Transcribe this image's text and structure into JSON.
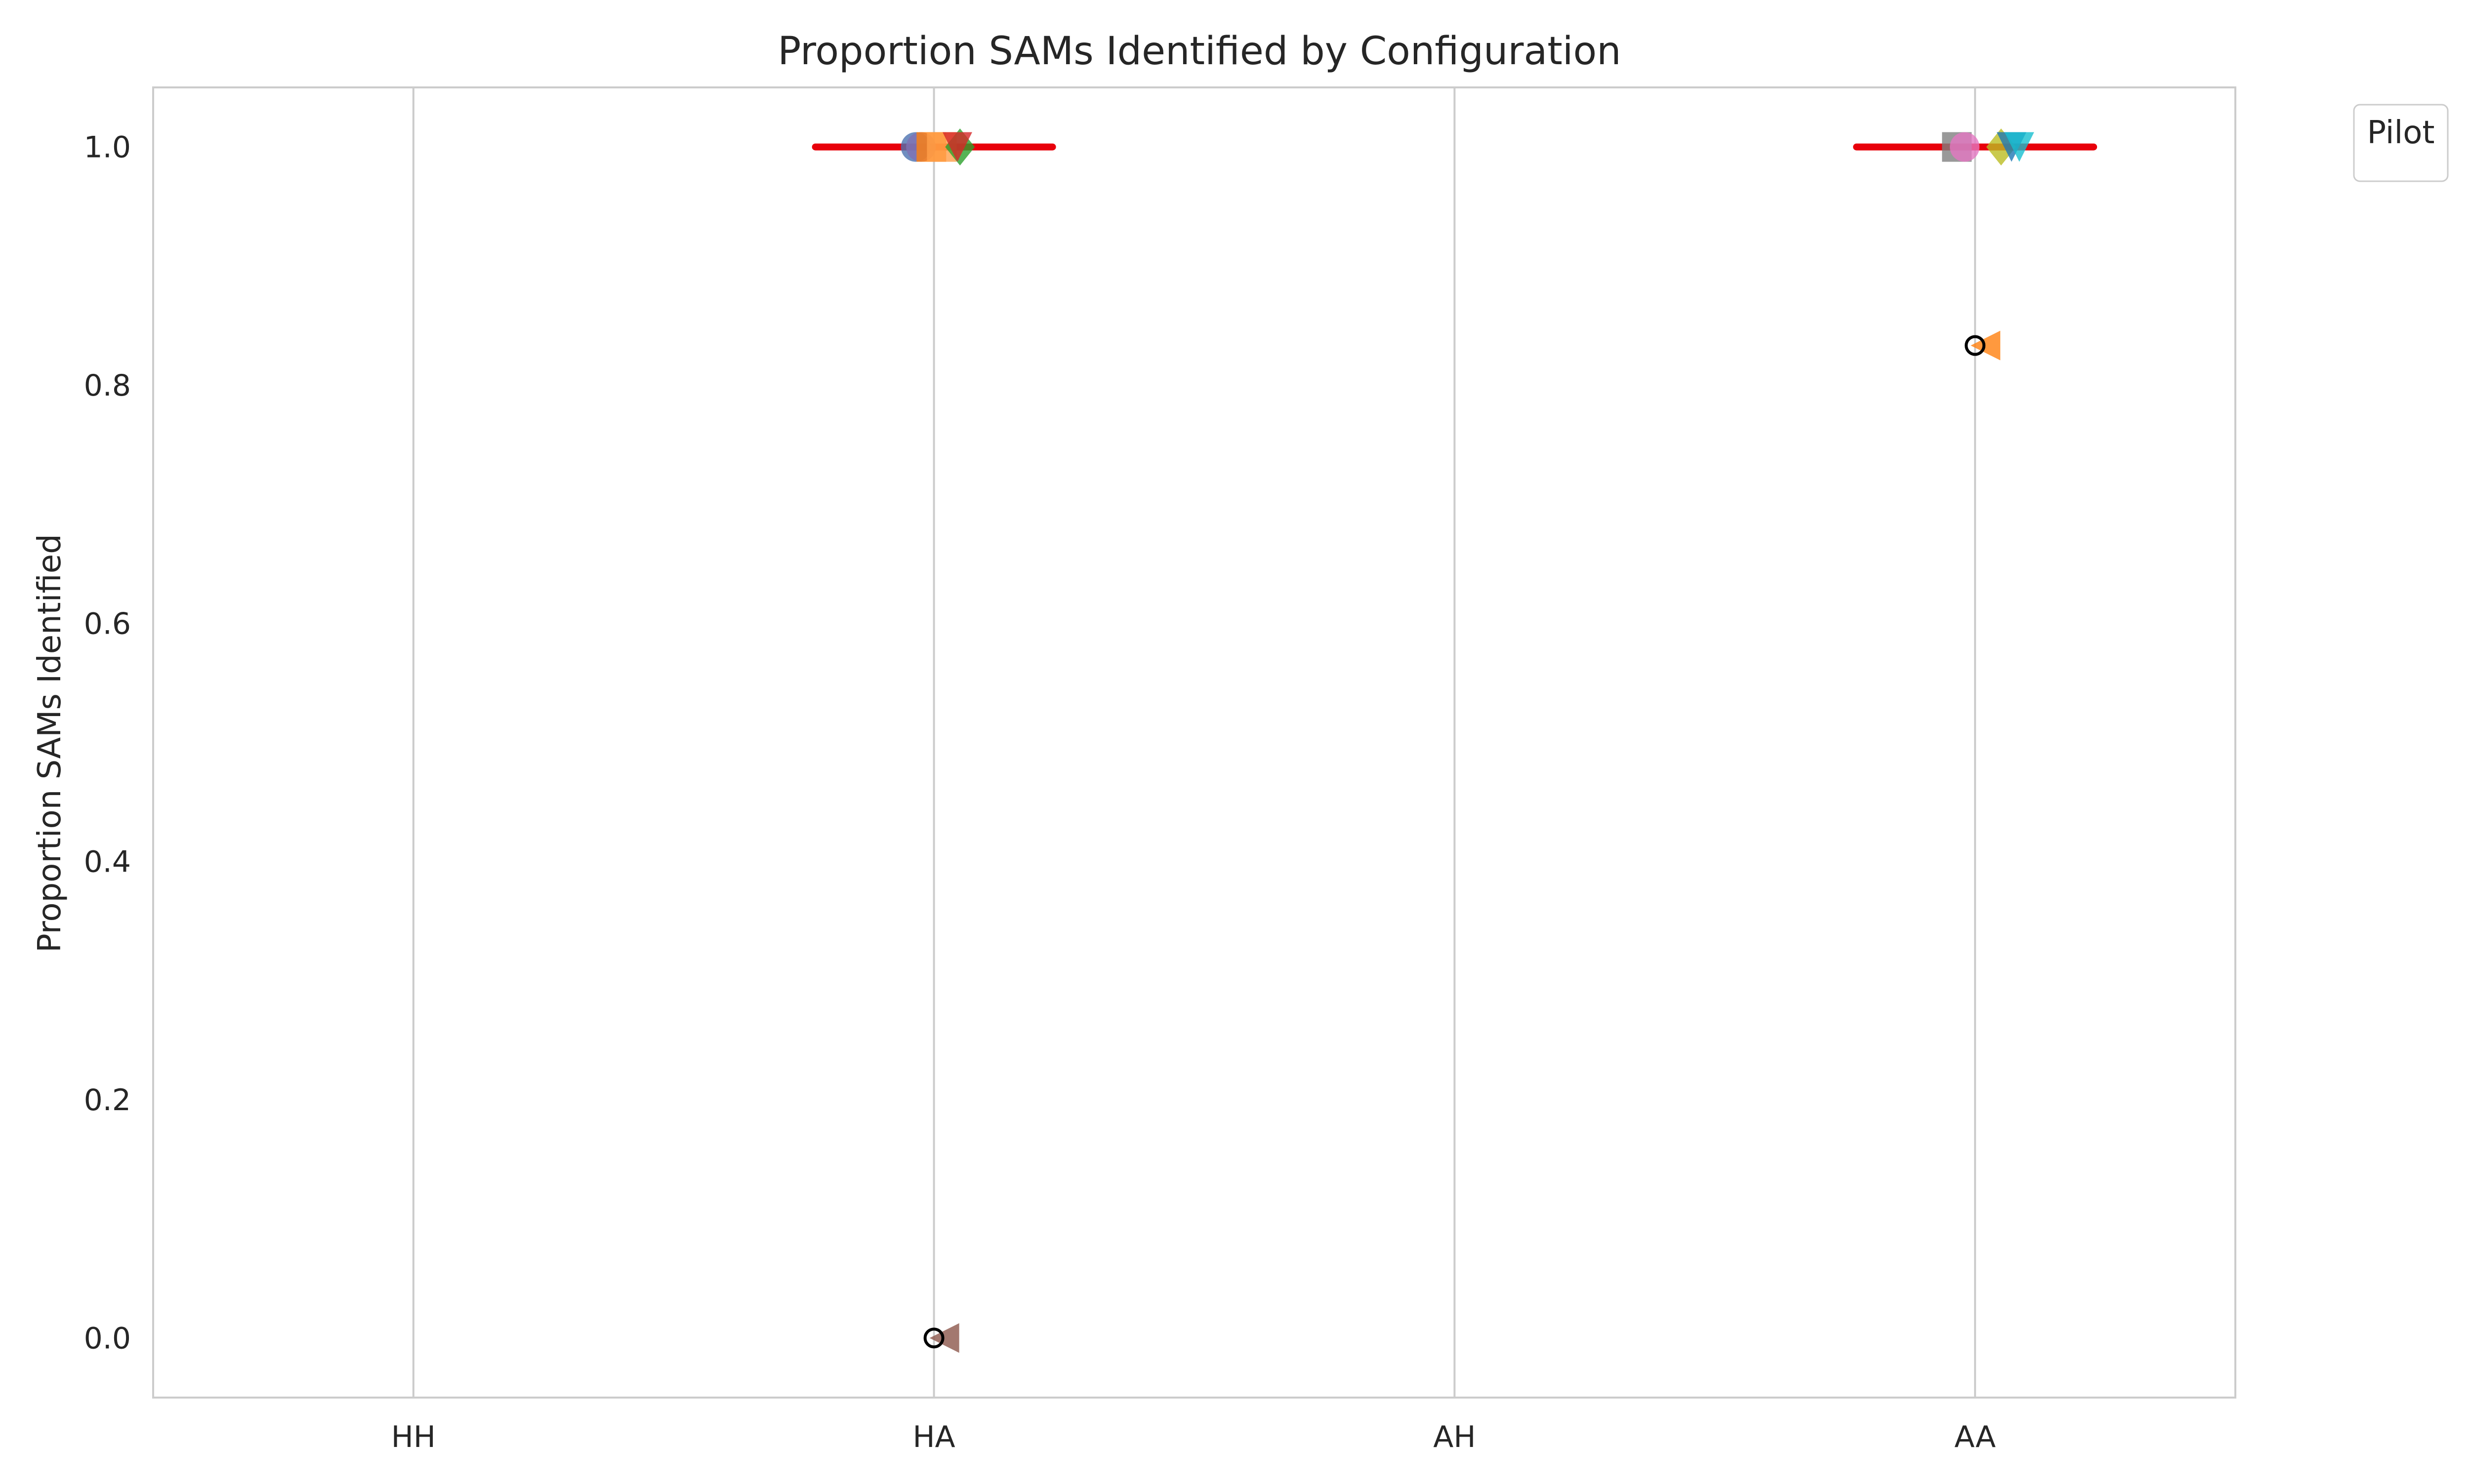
{
  "chart_data": {
    "type": "scatter",
    "title": "Proportion SAMs Identified by Configuration",
    "xlabel": "",
    "ylabel": "Proportion SAMs Identified",
    "categories": [
      "HH",
      "HA",
      "AH",
      "AA"
    ],
    "ylim": [
      -0.05,
      1.05
    ],
    "yticks": [
      "0.0",
      "0.2",
      "0.4",
      "0.6",
      "0.8",
      "1.0"
    ],
    "ytick_values": [
      0.0,
      0.2,
      0.4,
      0.6,
      0.8,
      1.0
    ],
    "grid": "vertical",
    "legend": {
      "title": "Pilot",
      "placement": "outside-top-right",
      "entries": []
    },
    "medians": [
      {
        "category": "HA",
        "value": 1.0,
        "color": "#e8000b"
      },
      {
        "category": "AA",
        "value": 1.0,
        "color": "#e8000b"
      }
    ],
    "outliers": [
      {
        "category": "HA",
        "value": 0.0
      },
      {
        "category": "AA",
        "value": 0.8333
      }
    ],
    "points": [
      {
        "category": "HA",
        "offset": -0.035,
        "value": 1.0,
        "marker": "circle",
        "color": "#4c72b0"
      },
      {
        "category": "HA",
        "offset": -0.025,
        "value": 1.0,
        "marker": "circle",
        "color": "#8172b3"
      },
      {
        "category": "HA",
        "offset": -0.005,
        "value": 1.0,
        "marker": "square",
        "color": "#ff7f0e"
      },
      {
        "category": "HA",
        "offset": 0.015,
        "value": 1.0,
        "marker": "square",
        "color": "#ff9f4a"
      },
      {
        "category": "HA",
        "offset": 0.05,
        "value": 1.0,
        "marker": "diamond",
        "color": "#2ca02c"
      },
      {
        "category": "HA",
        "offset": 0.045,
        "value": 1.0,
        "marker": "triangle-down",
        "color": "#d62728"
      },
      {
        "category": "HA",
        "offset": 0.02,
        "value": 0.0,
        "marker": "triangle-left",
        "color": "#8c564b"
      },
      {
        "category": "AA",
        "offset": -0.035,
        "value": 1.0,
        "marker": "square",
        "color": "#7f7f7f"
      },
      {
        "category": "AA",
        "offset": -0.02,
        "value": 1.0,
        "marker": "circle",
        "color": "#e377c2"
      },
      {
        "category": "AA",
        "offset": 0.05,
        "value": 1.0,
        "marker": "diamond",
        "color": "#bcbd22"
      },
      {
        "category": "AA",
        "offset": 0.07,
        "value": 1.0,
        "marker": "triangle-down",
        "color": "#1f77b4"
      },
      {
        "category": "AA",
        "offset": 0.085,
        "value": 1.0,
        "marker": "triangle-down",
        "color": "#17becf"
      },
      {
        "category": "AA",
        "offset": 0.02,
        "value": 0.8333,
        "marker": "triangle-left",
        "color": "#ff7f0e"
      }
    ]
  }
}
